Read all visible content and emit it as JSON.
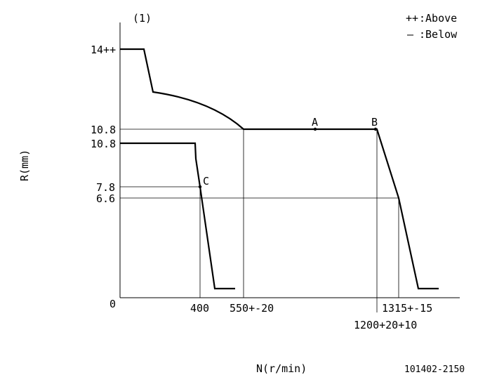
{
  "chart_data": {
    "type": "line",
    "panel_label": "(1)",
    "legend": [
      {
        "symbol": "++",
        "text": ":Above"
      },
      {
        "symbol": "—",
        "text": ":Below"
      }
    ],
    "xlabel": "N(r/min)",
    "ylabel": "R(mm)",
    "figure_id": "101402-2150",
    "y_ticks": [
      "14++",
      "10.8",
      "10.8",
      "7.8",
      "6.6",
      "0"
    ],
    "x_ticks": [
      "400",
      "550+-20",
      "1315+-15",
      "1200+20+10"
    ],
    "points": [
      {
        "name": "A",
        "label": "A"
      },
      {
        "name": "B",
        "label": "B"
      },
      {
        "name": "C",
        "label": "C"
      }
    ],
    "series": [
      {
        "role": "upper",
        "points": [
          [
            0,
            14
          ],
          [
            300,
            14
          ],
          [
            350,
            12
          ],
          [
            550,
            10.8
          ],
          [
            1200,
            10.8
          ],
          [
            1315,
            6.6
          ],
          [
            1440,
            0.5
          ],
          [
            1560,
            0.5
          ]
        ]
      },
      {
        "role": "lower",
        "points": [
          [
            0,
            10.8
          ],
          [
            350,
            10.8
          ],
          [
            400,
            7.8
          ],
          [
            450,
            0.5
          ],
          [
            550,
            0.5
          ]
        ]
      }
    ]
  }
}
